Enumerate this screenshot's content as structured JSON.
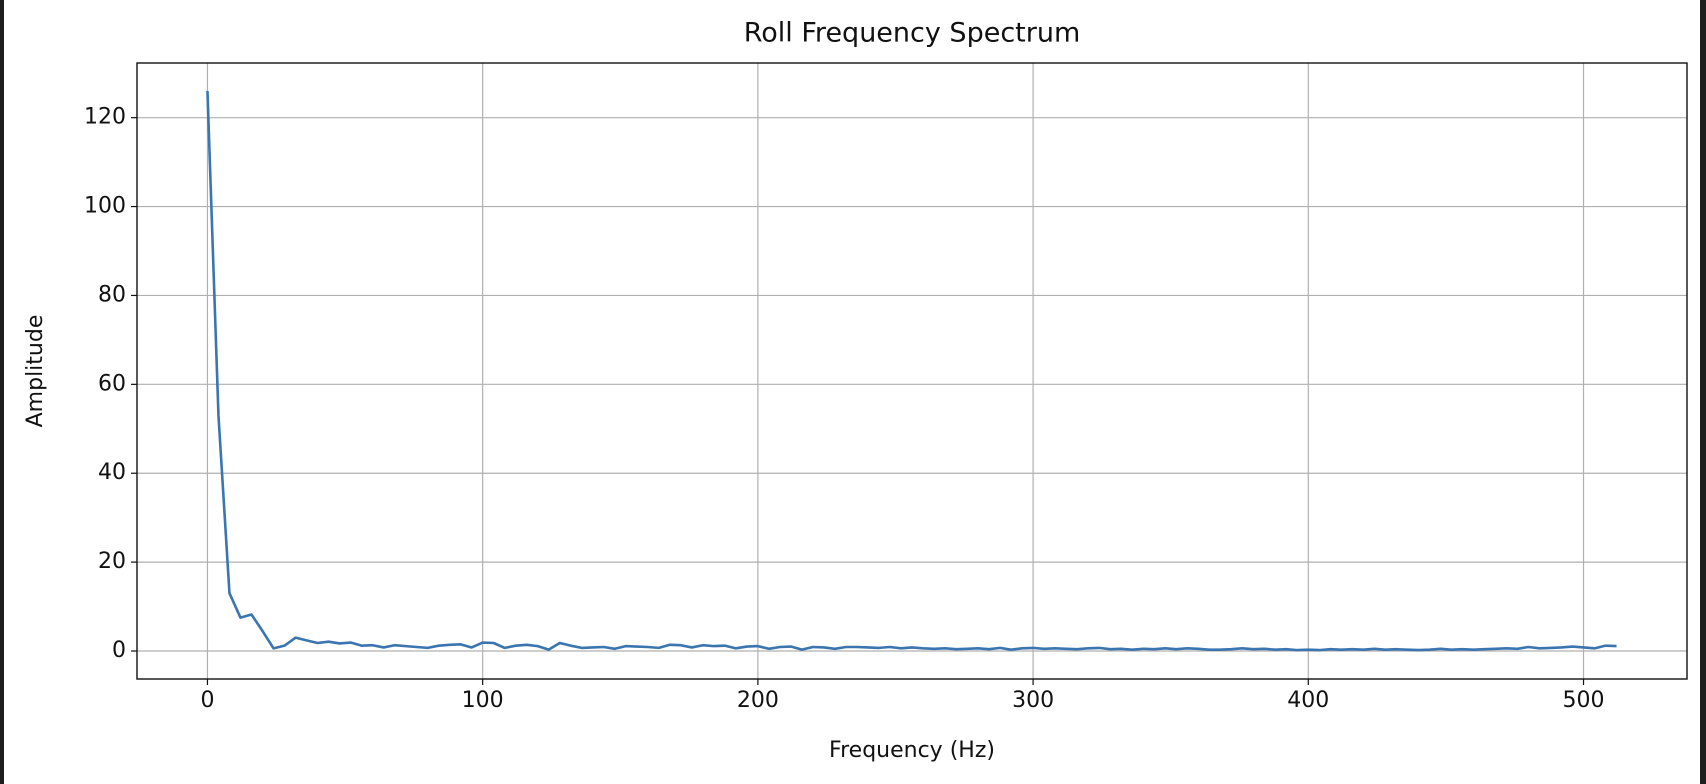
{
  "chart_data": {
    "type": "line",
    "title": "Roll Frequency Spectrum",
    "xlabel": "Frequency (Hz)",
    "ylabel": "Amplitude",
    "x": [
      0,
      4,
      8,
      12,
      16,
      20,
      24,
      28,
      32,
      36,
      40,
      44,
      48,
      52,
      56,
      60,
      64,
      68,
      72,
      76,
      80,
      84,
      88,
      92,
      96,
      100,
      104,
      108,
      112,
      116,
      120,
      124,
      128,
      132,
      136,
      140,
      144,
      148,
      152,
      156,
      160,
      164,
      168,
      172,
      176,
      180,
      184,
      188,
      192,
      196,
      200,
      204,
      208,
      212,
      216,
      220,
      224,
      228,
      232,
      236,
      240,
      244,
      248,
      252,
      256,
      260,
      264,
      268,
      272,
      276,
      280,
      284,
      288,
      292,
      296,
      300,
      304,
      308,
      312,
      316,
      320,
      324,
      328,
      332,
      336,
      340,
      344,
      348,
      352,
      356,
      360,
      364,
      368,
      372,
      376,
      380,
      384,
      388,
      392,
      396,
      400,
      404,
      408,
      412,
      416,
      420,
      424,
      428,
      432,
      436,
      440,
      444,
      448,
      452,
      456,
      460,
      464,
      468,
      472,
      476,
      480,
      484,
      488,
      492,
      496,
      500,
      504,
      508,
      512
    ],
    "series": [
      {
        "name": "Roll",
        "color": "#3a75b0",
        "values": [
          126,
          53,
          13,
          7.5,
          8.2,
          4.5,
          0.6,
          1.2,
          3.0,
          2.4,
          1.8,
          2.1,
          1.7,
          1.9,
          1.2,
          1.3,
          0.8,
          1.3,
          1.1,
          0.9,
          0.7,
          1.2,
          1.4,
          1.5,
          0.8,
          1.9,
          1.8,
          0.7,
          1.2,
          1.4,
          1.1,
          0.3,
          1.8,
          1.2,
          0.7,
          0.8,
          0.9,
          0.5,
          1.1,
          1.0,
          0.9,
          0.7,
          1.4,
          1.3,
          0.8,
          1.3,
          1.1,
          1.2,
          0.6,
          1.0,
          1.1,
          0.5,
          0.9,
          1.0,
          0.3,
          0.9,
          0.8,
          0.5,
          0.9,
          0.9,
          0.8,
          0.7,
          0.9,
          0.6,
          0.8,
          0.6,
          0.5,
          0.6,
          0.4,
          0.5,
          0.6,
          0.4,
          0.7,
          0.3,
          0.6,
          0.7,
          0.5,
          0.6,
          0.5,
          0.4,
          0.6,
          0.7,
          0.4,
          0.5,
          0.3,
          0.5,
          0.4,
          0.6,
          0.4,
          0.6,
          0.5,
          0.3,
          0.3,
          0.4,
          0.6,
          0.4,
          0.5,
          0.3,
          0.4,
          0.2,
          0.3,
          0.2,
          0.4,
          0.3,
          0.4,
          0.3,
          0.5,
          0.3,
          0.4,
          0.3,
          0.2,
          0.3,
          0.5,
          0.3,
          0.4,
          0.3,
          0.4,
          0.5,
          0.6,
          0.5,
          0.9,
          0.6,
          0.7,
          0.8,
          1.0,
          0.8,
          0.6,
          1.2,
          1.1
        ]
      }
    ],
    "xlim": [
      -25.6,
      537.6
    ],
    "ylim": [
      -6.3,
      132.3
    ],
    "xticks": [
      0,
      100,
      200,
      300,
      400,
      500
    ],
    "yticks": [
      0,
      20,
      40,
      60,
      80,
      100,
      120
    ],
    "grid": true
  }
}
